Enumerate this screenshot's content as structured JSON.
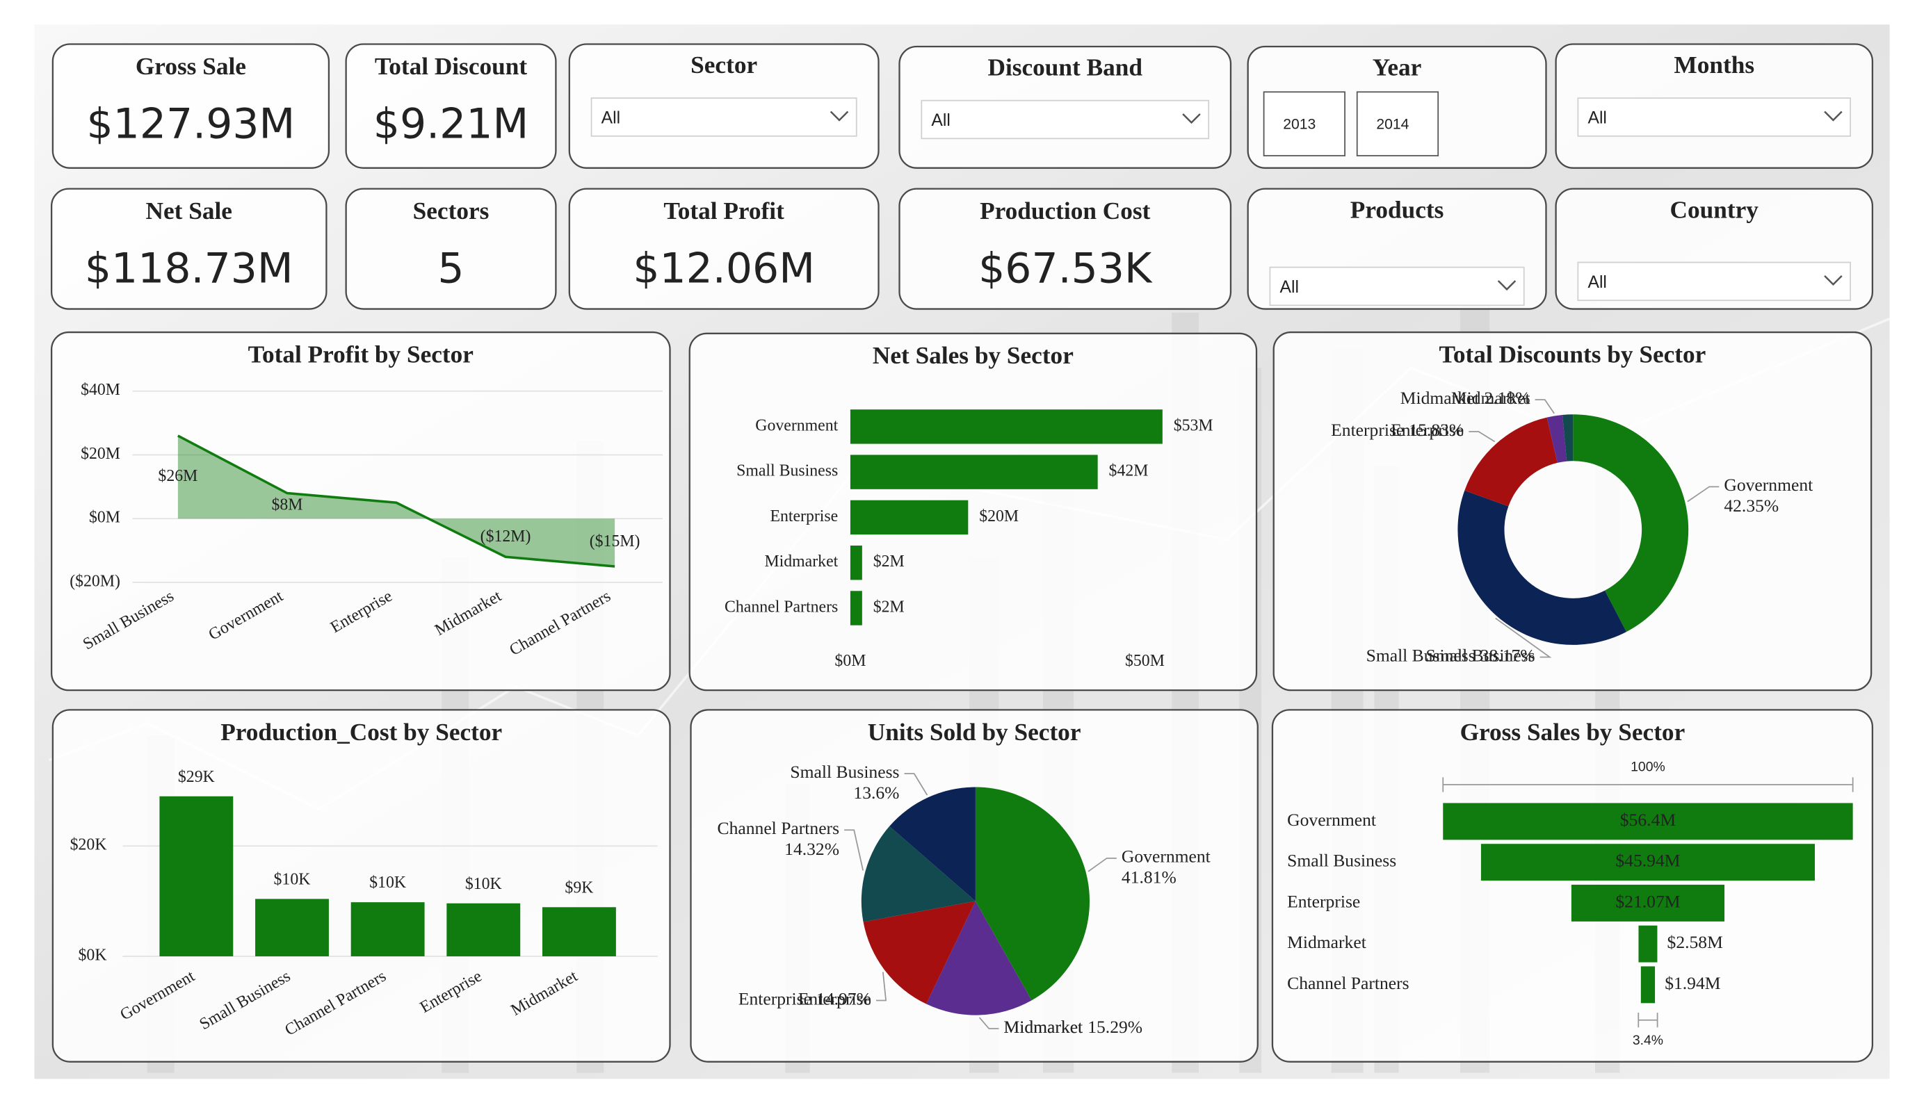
{
  "cards": [
    {
      "label": "Gross Sale",
      "value": "$127.93M"
    },
    {
      "label": "Total Discount",
      "value": "$9.21M"
    },
    {
      "label": "Net Sale",
      "value": "$118.73M"
    },
    {
      "label": "Sectors",
      "value": 5
    },
    {
      "label": "Total Profit",
      "value": "$12.06M"
    },
    {
      "label": "Production Cost",
      "value": "$67.53K"
    }
  ],
  "slicers": [
    {
      "label": "Sector",
      "value": "All"
    },
    {
      "label": "Discount Band",
      "value": "All"
    },
    {
      "label": "Year",
      "options": [
        "2013",
        "2014"
      ]
    },
    {
      "label": "Months",
      "value": "All"
    },
    {
      "label": "Products",
      "value": "All"
    },
    {
      "label": "Country",
      "value": "All"
    }
  ],
  "chart_data": [
    {
      "type": "area",
      "title": "Total Profit by Sector",
      "categories": [
        "Small Business",
        "Government",
        "Enterprise",
        "Midmarket",
        "Channel Partners"
      ],
      "values": [
        26,
        8,
        5,
        -12,
        -15
      ],
      "value_labels": [
        "$26M",
        "$8M",
        null,
        "($12M)",
        "($15M)"
      ],
      "color": "#107c10",
      "ylim": [
        -20,
        40
      ],
      "yticks": [
        {
          "value": 40,
          "label": "$40M"
        },
        {
          "value": 20,
          "label": "$20M"
        },
        {
          "value": 0,
          "label": "$0M"
        },
        {
          "value": -20,
          "label": "($20M)"
        }
      ],
      "grid": true
    },
    {
      "type": "hbar",
      "title": "Net Sales by Sector",
      "categories": [
        "Government",
        "Small Business",
        "Enterprise",
        "Midmarket",
        "Channel Partners"
      ],
      "values": [
        53,
        42,
        20,
        2,
        2
      ],
      "value_labels": [
        "$53M",
        "$42M",
        "$20M",
        "$2M",
        "$2M"
      ],
      "color": "#107c10",
      "xlim": [
        0,
        60
      ],
      "xticks": [
        {
          "value": 0,
          "label": "$0M"
        },
        {
          "value": 50,
          "label": "$50M"
        }
      ]
    },
    {
      "type": "donut",
      "title": "Total Discounts by Sector",
      "categories": [
        "Government",
        "Small Business",
        "Enterprise",
        "Midmarket",
        null
      ],
      "values": [
        42.35,
        38.17,
        15.83,
        2.18,
        1.47
      ],
      "value_labels": [
        "42.35%",
        "38.17%",
        "15.83%",
        "2.18%",
        null
      ],
      "colors": [
        "#107c10",
        "#0c2455",
        "#a50f0f",
        "#5b2d90",
        "#124a4f"
      ]
    },
    {
      "type": "bar",
      "title": "Production_Cost by Sector",
      "categories": [
        "Government",
        "Small Business",
        "Channel Partners",
        "Enterprise",
        "Midmarket"
      ],
      "values": [
        29,
        10.4,
        9.8,
        9.6,
        8.9
      ],
      "value_labels": [
        "$29K",
        "$10K",
        "$10K",
        "$10K",
        "$9K"
      ],
      "color": "#107c10",
      "ylim": [
        0,
        30
      ],
      "yticks": [
        {
          "value": 0,
          "label": "$0K"
        },
        {
          "value": 20,
          "label": "$20K"
        }
      ],
      "grid": true
    },
    {
      "type": "pie",
      "title": "Units Sold by Sector",
      "categories": [
        "Government",
        "Midmarket",
        "Enterprise",
        "Channel Partners",
        "Small Business"
      ],
      "values": [
        41.81,
        15.29,
        14.97,
        14.32,
        13.6
      ],
      "value_labels": [
        "41.81%",
        "15.29%",
        "14.97%",
        "14.32%",
        "13.6%"
      ],
      "colors": [
        "#107c10",
        "#5b2d90",
        "#a50f0f",
        "#124a4f",
        "#0c2455"
      ]
    },
    {
      "type": "funnel",
      "title": "Gross Sales by Sector",
      "categories": [
        "Government",
        "Small Business",
        "Enterprise",
        "Midmarket",
        "Channel Partners"
      ],
      "values": [
        56.4,
        45.94,
        21.07,
        2.58,
        1.94
      ],
      "value_labels": [
        "$56.4M",
        "$45.94M",
        "$21.07M",
        "$2.58M",
        "$1.94M"
      ],
      "color": "#107c10",
      "top_label": "100%",
      "bottom_label": "3.4%"
    }
  ]
}
